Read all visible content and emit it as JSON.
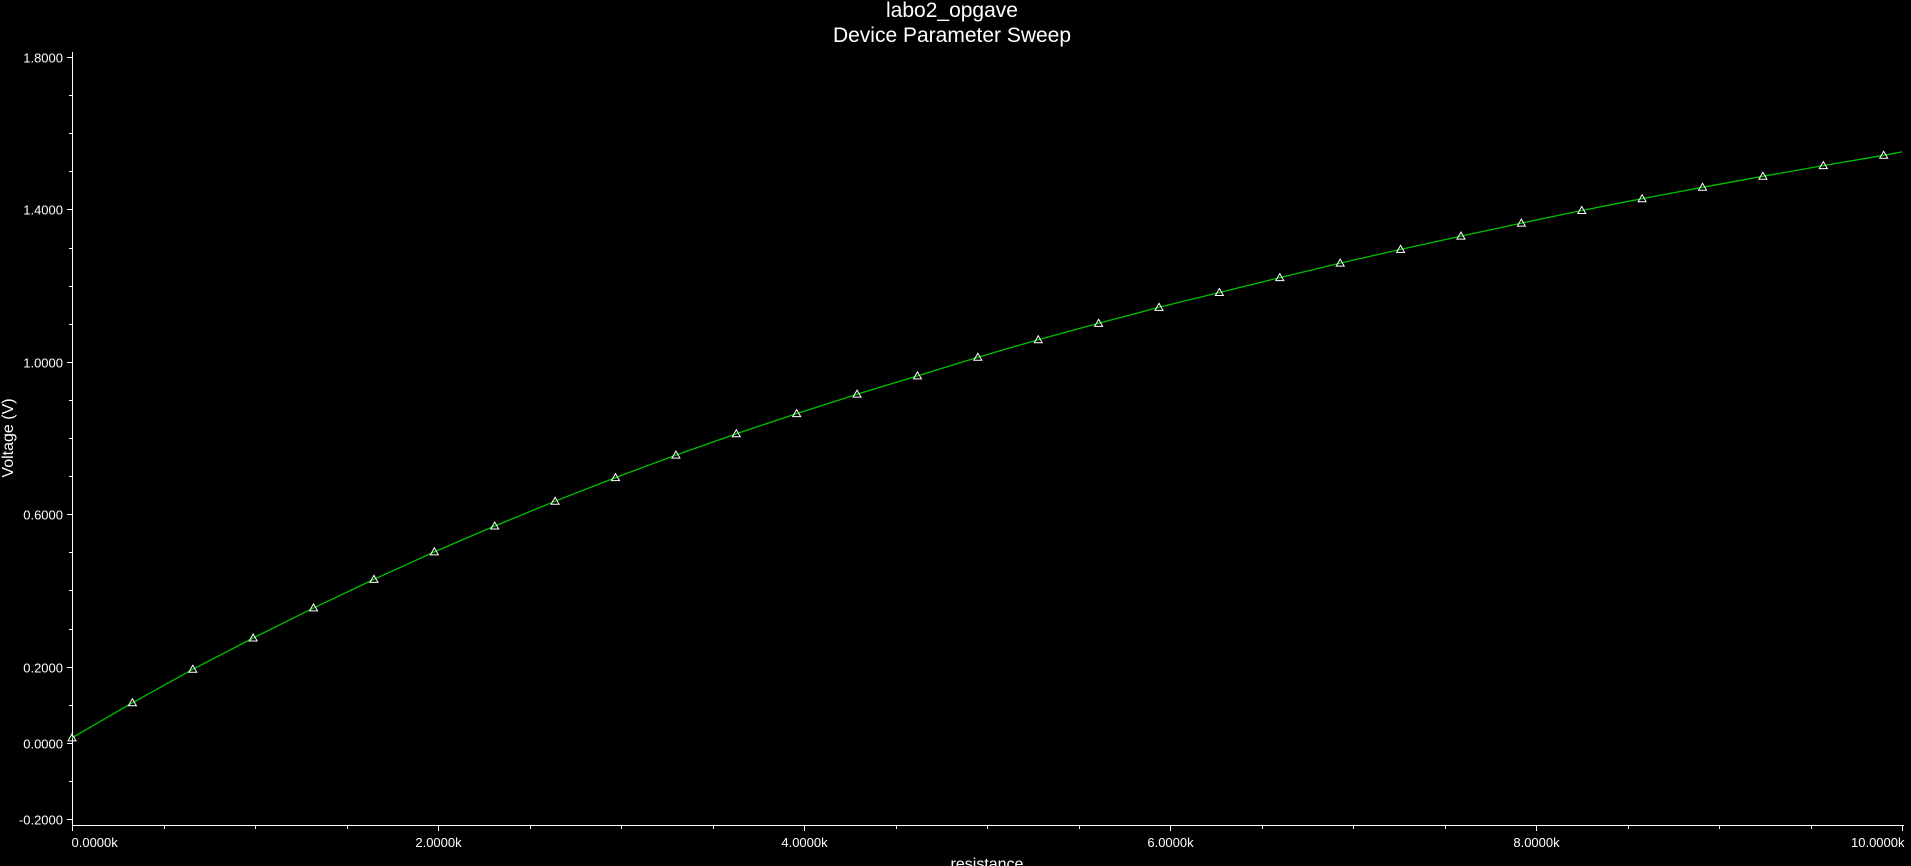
{
  "chart_data": {
    "type": "line",
    "title": "labo2_opgave",
    "subtitle": "Device Parameter Sweep",
    "xlabel": "resistance",
    "ylabel": "Voltage (V)",
    "xlim": [
      0,
      10
    ],
    "ylim": [
      -0.2,
      1.8
    ],
    "x_unit": "k",
    "x_ticks": [
      0,
      2,
      4,
      6,
      8,
      10
    ],
    "x_tick_labels": [
      "0.0000k",
      "2.0000k",
      "4.0000k",
      "6.0000k",
      "8.0000k",
      "10.0000k"
    ],
    "y_ticks": [
      -0.2,
      0.0,
      0.2,
      0.6,
      1.0,
      1.4,
      1.8
    ],
    "y_tick_labels": [
      "-0.2000",
      "0.0000",
      "0.2000",
      "0.6000",
      "1.0000",
      "1.4000",
      "1.8000"
    ],
    "grid": false,
    "background": "#000000",
    "axis_color": "#ffffff",
    "series": [
      {
        "color": "#00c000",
        "marker": "triangle",
        "marker_color": "#ffffff",
        "x": [
          0.0,
          0.33,
          0.66,
          0.99,
          1.32,
          1.65,
          1.98,
          2.31,
          2.64,
          2.97,
          3.3,
          3.63,
          3.96,
          4.29,
          4.62,
          4.95,
          5.28,
          5.61,
          5.94,
          6.27,
          6.6,
          6.93,
          7.26,
          7.59,
          7.92,
          8.25,
          8.58,
          8.91,
          9.24,
          9.57,
          9.9
        ],
        "values": [
          0.013,
          0.105,
          0.193,
          0.275,
          0.354,
          0.429,
          0.501,
          0.569,
          0.634,
          0.696,
          0.755,
          0.811,
          0.864,
          0.915,
          0.963,
          1.012,
          1.058,
          1.101,
          1.143,
          1.182,
          1.221,
          1.259,
          1.295,
          1.33,
          1.364,
          1.397,
          1.428,
          1.458,
          1.487,
          1.515,
          1.542
        ],
        "line_x_end": 10.0,
        "line_y_end": 1.551
      }
    ]
  }
}
